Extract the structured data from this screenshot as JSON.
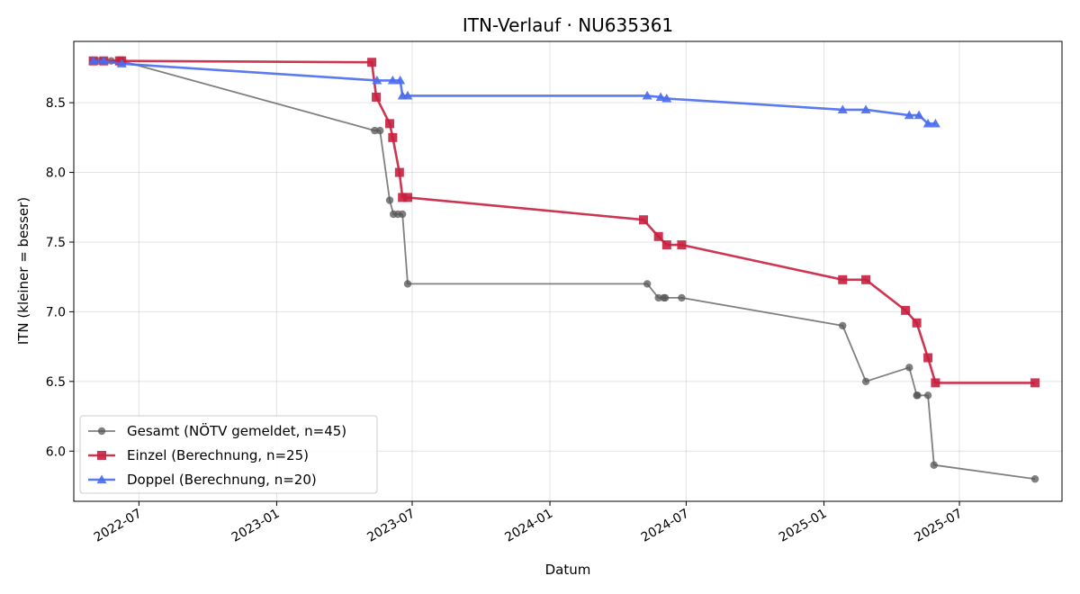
{
  "chart_data": {
    "type": "line",
    "title": "ITN-Verlauf · NU635361",
    "xlabel": "Datum",
    "ylabel": "ITN  (kleiner = besser)",
    "x_ticks": [
      "2022-07",
      "2023-01",
      "2023-07",
      "2024-01",
      "2024-07",
      "2025-01",
      "2025-07"
    ],
    "y_ticks": [
      "6.0",
      "6.5",
      "7.0",
      "7.5",
      "8.0",
      "8.5"
    ],
    "xlim": [
      "2022-04-05",
      "2025-11-15"
    ],
    "ylim": [
      5.64,
      8.94
    ],
    "grid": true,
    "legend_position": "lower-left",
    "series": [
      {
        "name": "Gesamt (NÖTV gemeldet, n=45)",
        "color": "#555555",
        "marker": "circle",
        "points": [
          [
            "2022-05-01",
            8.8
          ],
          [
            "2022-05-08",
            8.8
          ],
          [
            "2022-05-15",
            8.8
          ],
          [
            "2022-05-25",
            8.8
          ],
          [
            "2022-06-05",
            8.8
          ],
          [
            "2022-06-08",
            8.8
          ],
          [
            "2023-05-12",
            8.3
          ],
          [
            "2023-05-19",
            8.3
          ],
          [
            "2023-06-01",
            7.8
          ],
          [
            "2023-06-06",
            7.7
          ],
          [
            "2023-06-12",
            7.7
          ],
          [
            "2023-06-18",
            7.7
          ],
          [
            "2023-06-25",
            7.2
          ],
          [
            "2024-05-10",
            7.2
          ],
          [
            "2024-05-25",
            7.1
          ],
          [
            "2024-06-01",
            7.1
          ],
          [
            "2024-06-03",
            7.1
          ],
          [
            "2024-06-25",
            7.1
          ],
          [
            "2025-01-26",
            6.9
          ],
          [
            "2025-02-26",
            6.5
          ],
          [
            "2025-04-25",
            6.6
          ],
          [
            "2025-05-05",
            6.4
          ],
          [
            "2025-05-06",
            6.4
          ],
          [
            "2025-05-20",
            6.4
          ],
          [
            "2025-05-28",
            5.9
          ],
          [
            "2025-10-10",
            5.8
          ]
        ]
      },
      {
        "name": "Einzel (Berechnung, n=25)",
        "color": "#c8203f",
        "marker": "square",
        "points": [
          [
            "2022-05-01",
            8.8
          ],
          [
            "2022-05-15",
            8.8
          ],
          [
            "2022-06-05",
            8.8
          ],
          [
            "2022-06-08",
            8.8
          ],
          [
            "2023-05-08",
            8.79
          ],
          [
            "2023-05-14",
            8.54
          ],
          [
            "2023-06-01",
            8.35
          ],
          [
            "2023-06-05",
            8.25
          ],
          [
            "2023-06-14",
            8.0
          ],
          [
            "2023-06-18",
            7.82
          ],
          [
            "2023-06-25",
            7.82
          ],
          [
            "2024-05-05",
            7.66
          ],
          [
            "2024-05-25",
            7.54
          ],
          [
            "2024-06-05",
            7.48
          ],
          [
            "2024-06-25",
            7.48
          ],
          [
            "2025-01-26",
            7.23
          ],
          [
            "2025-02-26",
            7.23
          ],
          [
            "2025-04-20",
            7.01
          ],
          [
            "2025-05-05",
            6.92
          ],
          [
            "2025-05-20",
            6.67
          ],
          [
            "2025-05-30",
            6.49
          ],
          [
            "2025-10-10",
            6.49
          ]
        ]
      },
      {
        "name": "Doppel (Berechnung, n=20)",
        "color": "#4a6ced",
        "marker": "triangle",
        "points": [
          [
            "2022-05-01",
            8.8
          ],
          [
            "2022-05-15",
            8.8
          ],
          [
            "2022-06-08",
            8.78
          ],
          [
            "2023-05-15",
            8.66
          ],
          [
            "2023-06-05",
            8.66
          ],
          [
            "2023-06-15",
            8.66
          ],
          [
            "2023-06-18",
            8.55
          ],
          [
            "2023-06-25",
            8.55
          ],
          [
            "2024-05-10",
            8.55
          ],
          [
            "2024-05-28",
            8.54
          ],
          [
            "2024-06-05",
            8.53
          ],
          [
            "2025-01-26",
            8.45
          ],
          [
            "2025-02-26",
            8.45
          ],
          [
            "2025-04-25",
            8.41
          ],
          [
            "2025-05-08",
            8.41
          ],
          [
            "2025-05-20",
            8.35
          ],
          [
            "2025-05-30",
            8.35
          ]
        ]
      }
    ]
  }
}
